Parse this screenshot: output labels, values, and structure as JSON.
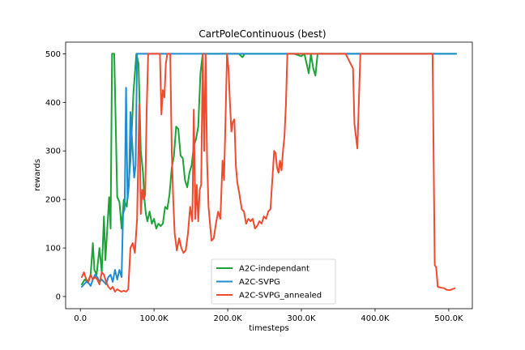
{
  "chart_data": {
    "type": "line",
    "title": "CartPoleContinuous (best)",
    "xlabel": "timesteps",
    "ylabel": "rewards",
    "xlim": [
      -20000,
      532000
    ],
    "ylim": [
      -25,
      524
    ],
    "grid": false,
    "legend": "lower-center",
    "x_ticks": [
      0,
      100000,
      200000,
      300000,
      400000,
      500000
    ],
    "x_tick_labels": [
      "0.0",
      "100.0K",
      "200.0K",
      "300.0K",
      "400.0K",
      "500.0K"
    ],
    "y_ticks": [
      0,
      100,
      200,
      300,
      400,
      500
    ],
    "y_tick_labels": [
      "0",
      "100",
      "200",
      "300",
      "400",
      "500"
    ],
    "series": [
      {
        "name": "A2C-independant",
        "color": "#1aa336",
        "points": [
          [
            2000,
            25
          ],
          [
            6000,
            35
          ],
          [
            10000,
            30
          ],
          [
            14000,
            45
          ],
          [
            17000,
            110
          ],
          [
            19000,
            55
          ],
          [
            22000,
            45
          ],
          [
            26000,
            100
          ],
          [
            29000,
            50
          ],
          [
            32000,
            165
          ],
          [
            34000,
            75
          ],
          [
            36000,
            125
          ],
          [
            39000,
            205
          ],
          [
            41000,
            140
          ],
          [
            43000,
            500
          ],
          [
            46000,
            500
          ],
          [
            50000,
            205
          ],
          [
            53000,
            195
          ],
          [
            56000,
            140
          ],
          [
            59000,
            200
          ],
          [
            63000,
            185
          ],
          [
            68000,
            280
          ],
          [
            72000,
            420
          ],
          [
            76000,
            500
          ],
          [
            79000,
            480
          ],
          [
            82000,
            300
          ],
          [
            85000,
            255
          ],
          [
            87000,
            200
          ],
          [
            89000,
            170
          ],
          [
            91000,
            155
          ],
          [
            94000,
            175
          ],
          [
            97000,
            150
          ],
          [
            100000,
            160
          ],
          [
            103000,
            140
          ],
          [
            106000,
            150
          ],
          [
            109000,
            145
          ],
          [
            112000,
            150
          ],
          [
            115000,
            185
          ],
          [
            118000,
            180
          ],
          [
            121000,
            210
          ],
          [
            124000,
            265
          ],
          [
            127000,
            290
          ],
          [
            130000,
            350
          ],
          [
            133000,
            345
          ],
          [
            136000,
            290
          ],
          [
            139000,
            285
          ],
          [
            142000,
            240
          ],
          [
            145000,
            225
          ],
          [
            148000,
            255
          ],
          [
            151000,
            270
          ],
          [
            154000,
            310
          ],
          [
            157000,
            325
          ],
          [
            160000,
            350
          ],
          [
            163000,
            460
          ],
          [
            166000,
            500
          ],
          [
            170000,
            500
          ],
          [
            175000,
            500
          ],
          [
            180000,
            500
          ],
          [
            185000,
            500
          ],
          [
            190000,
            500
          ],
          [
            195000,
            500
          ],
          [
            200000,
            500
          ],
          [
            205000,
            500
          ],
          [
            210000,
            500
          ],
          [
            215000,
            500
          ],
          [
            220000,
            493
          ],
          [
            223000,
            500
          ],
          [
            230000,
            500
          ],
          [
            240000,
            500
          ],
          [
            250000,
            500
          ],
          [
            260000,
            500
          ],
          [
            270000,
            500
          ],
          [
            280000,
            500
          ],
          [
            290000,
            500
          ],
          [
            300000,
            495
          ],
          [
            304000,
            500
          ],
          [
            310000,
            460
          ],
          [
            313000,
            500
          ],
          [
            316000,
            470
          ],
          [
            319000,
            455
          ],
          [
            322000,
            500
          ],
          [
            326000,
            500
          ],
          [
            330000,
            500
          ],
          [
            340000,
            500
          ],
          [
            360000,
            500
          ],
          [
            400000,
            500
          ],
          [
            450000,
            500
          ],
          [
            500000,
            500
          ],
          [
            510000,
            500
          ]
        ]
      },
      {
        "name": "A2C-SVPG",
        "color": "#1f8cd2",
        "points": [
          [
            2000,
            20
          ],
          [
            5000,
            25
          ],
          [
            8000,
            30
          ],
          [
            11000,
            28
          ],
          [
            14000,
            22
          ],
          [
            17000,
            35
          ],
          [
            20000,
            45
          ],
          [
            23000,
            40
          ],
          [
            26000,
            30
          ],
          [
            29000,
            35
          ],
          [
            32000,
            30
          ],
          [
            35000,
            25
          ],
          [
            38000,
            40
          ],
          [
            41000,
            45
          ],
          [
            44000,
            30
          ],
          [
            47000,
            55
          ],
          [
            50000,
            35
          ],
          [
            53000,
            55
          ],
          [
            56000,
            40
          ],
          [
            58000,
            170
          ],
          [
            60000,
            180
          ],
          [
            62000,
            430
          ],
          [
            64000,
            200
          ],
          [
            66000,
            230
          ],
          [
            68000,
            380
          ],
          [
            71000,
            300
          ],
          [
            73000,
            245
          ],
          [
            75000,
            270
          ],
          [
            77000,
            500
          ],
          [
            80000,
            500
          ],
          [
            90000,
            500
          ],
          [
            100000,
            500
          ],
          [
            150000,
            500
          ],
          [
            200000,
            500
          ],
          [
            250000,
            500
          ],
          [
            300000,
            500
          ],
          [
            350000,
            500
          ],
          [
            400000,
            500
          ],
          [
            450000,
            500
          ],
          [
            500000,
            500
          ],
          [
            510000,
            500
          ]
        ]
      },
      {
        "name": "A2C-SVPG_annealed",
        "color": "#ef4b30",
        "points": [
          [
            2000,
            40
          ],
          [
            5000,
            50
          ],
          [
            8000,
            35
          ],
          [
            11000,
            30
          ],
          [
            14000,
            45
          ],
          [
            17000,
            35
          ],
          [
            20000,
            40
          ],
          [
            23000,
            35
          ],
          [
            26000,
            25
          ],
          [
            29000,
            50
          ],
          [
            32000,
            45
          ],
          [
            35000,
            30
          ],
          [
            38000,
            20
          ],
          [
            41000,
            15
          ],
          [
            44000,
            20
          ],
          [
            47000,
            10
          ],
          [
            50000,
            15
          ],
          [
            53000,
            12
          ],
          [
            56000,
            10
          ],
          [
            59000,
            12
          ],
          [
            62000,
            10
          ],
          [
            65000,
            15
          ],
          [
            68000,
            100
          ],
          [
            71000,
            110
          ],
          [
            74000,
            90
          ],
          [
            77000,
            160
          ],
          [
            80000,
            395
          ],
          [
            82000,
            170
          ],
          [
            84000,
            220
          ],
          [
            86000,
            200
          ],
          [
            88000,
            210
          ],
          [
            90000,
            380
          ],
          [
            92000,
            500
          ],
          [
            96000,
            500
          ],
          [
            100000,
            500
          ],
          [
            104000,
            500
          ],
          [
            108000,
            500
          ],
          [
            110000,
            375
          ],
          [
            112000,
            425
          ],
          [
            114000,
            410
          ],
          [
            116000,
            480
          ],
          [
            118000,
            500
          ],
          [
            122000,
            500
          ],
          [
            124000,
            300
          ],
          [
            126000,
            200
          ],
          [
            128000,
            130
          ],
          [
            131000,
            95
          ],
          [
            134000,
            120
          ],
          [
            137000,
            100
          ],
          [
            140000,
            90
          ],
          [
            143000,
            95
          ],
          [
            146000,
            130
          ],
          [
            149000,
            185
          ],
          [
            152000,
            155
          ],
          [
            154000,
            385
          ],
          [
            156000,
            160
          ],
          [
            158000,
            230
          ],
          [
            160000,
            155
          ],
          [
            162000,
            220
          ],
          [
            164000,
            230
          ],
          [
            166000,
            500
          ],
          [
            168000,
            300
          ],
          [
            170000,
            500
          ],
          [
            172000,
            280
          ],
          [
            174000,
            185
          ],
          [
            176000,
            150
          ],
          [
            178000,
            115
          ],
          [
            181000,
            120
          ],
          [
            184000,
            150
          ],
          [
            187000,
            175
          ],
          [
            190000,
            160
          ],
          [
            193000,
            280
          ],
          [
            195000,
            240
          ],
          [
            197000,
            360
          ],
          [
            199000,
            500
          ],
          [
            201000,
            470
          ],
          [
            203000,
            400
          ],
          [
            205000,
            340
          ],
          [
            207000,
            360
          ],
          [
            209000,
            365
          ],
          [
            211000,
            270
          ],
          [
            213000,
            235
          ],
          [
            216000,
            210
          ],
          [
            219000,
            180
          ],
          [
            222000,
            175
          ],
          [
            225000,
            150
          ],
          [
            228000,
            160
          ],
          [
            231000,
            155
          ],
          [
            234000,
            160
          ],
          [
            237000,
            140
          ],
          [
            240000,
            145
          ],
          [
            243000,
            155
          ],
          [
            246000,
            150
          ],
          [
            249000,
            165
          ],
          [
            252000,
            160
          ],
          [
            255000,
            175
          ],
          [
            258000,
            180
          ],
          [
            261000,
            250
          ],
          [
            263000,
            300
          ],
          [
            265000,
            295
          ],
          [
            267000,
            265
          ],
          [
            269000,
            255
          ],
          [
            271000,
            280
          ],
          [
            273000,
            260
          ],
          [
            275000,
            300
          ],
          [
            277000,
            330
          ],
          [
            279000,
            395
          ],
          [
            281000,
            500
          ],
          [
            284000,
            500
          ],
          [
            290000,
            500
          ],
          [
            300000,
            500
          ],
          [
            320000,
            500
          ],
          [
            360000,
            500
          ],
          [
            370000,
            470
          ],
          [
            372000,
            355
          ],
          [
            374000,
            330
          ],
          [
            376000,
            305
          ],
          [
            378000,
            400
          ],
          [
            380000,
            500
          ],
          [
            390000,
            500
          ],
          [
            400000,
            500
          ],
          [
            450000,
            500
          ],
          [
            478000,
            500
          ],
          [
            481000,
            65
          ],
          [
            483000,
            60
          ],
          [
            485000,
            20
          ],
          [
            490000,
            18
          ],
          [
            494000,
            17
          ],
          [
            497000,
            14
          ],
          [
            501000,
            13
          ],
          [
            505000,
            15
          ],
          [
            508000,
            17
          ]
        ]
      }
    ]
  }
}
